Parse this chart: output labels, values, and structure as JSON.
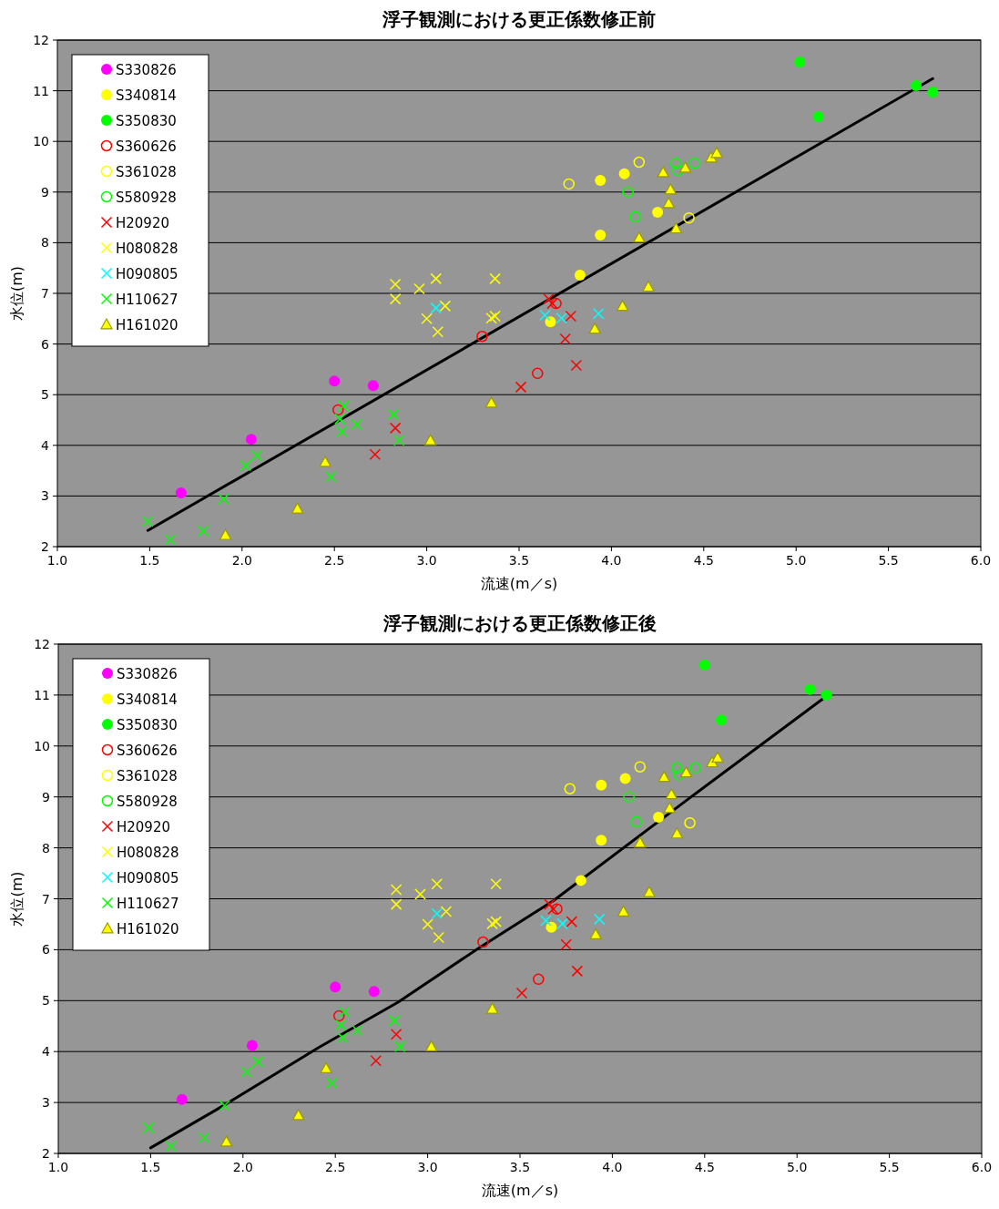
{
  "chart_data": [
    {
      "type": "scatter",
      "title": "浮子観測における更正係数修正前",
      "xlabel": "流速(m／s)",
      "ylabel": "水位(m)",
      "xlim": [
        1.0,
        6.0
      ],
      "xticks": [
        {
          "value": 1,
          "label": "1.0"
        },
        {
          "value": 1.5,
          "label": "1.5"
        },
        {
          "value": 2,
          "label": "2.0"
        },
        {
          "value": 2.5,
          "label": "2.5"
        },
        {
          "value": 3,
          "label": "3.0"
        },
        {
          "value": 3.5,
          "label": "3.5"
        },
        {
          "value": 4,
          "label": "4.0"
        },
        {
          "value": 4.5,
          "label": "4.5"
        },
        {
          "value": 5,
          "label": "5.0"
        },
        {
          "value": 5.5,
          "label": "5.5"
        },
        {
          "value": 6,
          "label": "6.0"
        }
      ],
      "ylim": [
        2,
        12
      ],
      "yticks": [
        2,
        3,
        4,
        5,
        6,
        7,
        8,
        9,
        10,
        11,
        12
      ],
      "grid": "y",
      "legend": "top left",
      "series": [
        {
          "name": "S330826",
          "color": "#ff00ff",
          "marker": "circle",
          "x": [
            1.67,
            2.05,
            2.5,
            2.71
          ],
          "values": [
            3.06,
            4.12,
            5.27,
            5.18
          ]
        },
        {
          "name": "S340814",
          "color": "#ffff00",
          "marker": "circle",
          "x": [
            4.07,
            3.94,
            4.25,
            3.94,
            3.83,
            3.67
          ],
          "values": [
            9.36,
            9.23,
            8.6,
            8.15,
            7.36,
            6.44
          ]
        },
        {
          "name": "S350830",
          "color": "#00ff00",
          "marker": "circle",
          "x": [
            5.02,
            5.12,
            5.65,
            5.74
          ],
          "values": [
            11.57,
            10.49,
            11.1,
            10.97
          ]
        },
        {
          "name": "S360626",
          "color": "#ff0000",
          "marker": "circle-open",
          "x": [
            3.3,
            3.6,
            2.52,
            3.7
          ],
          "values": [
            6.15,
            5.42,
            4.7,
            6.8
          ]
        },
        {
          "name": "S361028",
          "color": "#ffff00",
          "marker": "circle-open",
          "x": [
            3.77,
            4.15,
            4.42
          ],
          "values": [
            9.16,
            9.59,
            8.49
          ]
        },
        {
          "name": "S580928",
          "color": "#00ff00",
          "marker": "circle-open",
          "x": [
            4.09,
            4.13,
            4.35,
            4.36,
            4.45
          ],
          "values": [
            9.0,
            8.51,
            9.57,
            9.43,
            9.57
          ]
        },
        {
          "name": "H20920",
          "color": "#ff0000",
          "marker": "cross",
          "x": [
            3.66,
            3.68,
            3.78,
            3.75,
            3.81,
            3.51,
            2.83,
            2.72
          ],
          "values": [
            6.89,
            6.8,
            6.55,
            6.1,
            5.58,
            5.15,
            4.34,
            3.82
          ]
        },
        {
          "name": "H080828",
          "color": "#ffff00",
          "marker": "cross",
          "x": [
            2.83,
            2.83,
            2.96,
            3.05,
            3.37,
            3.1,
            3.0,
            3.06,
            3.35,
            3.37
          ],
          "values": [
            7.18,
            6.89,
            7.09,
            7.29,
            7.29,
            6.75,
            6.5,
            6.24,
            6.51,
            6.55
          ]
        },
        {
          "name": "H090805",
          "color": "#00ffff",
          "marker": "cross",
          "x": [
            3.05,
            3.64,
            3.73,
            3.93
          ],
          "values": [
            6.71,
            6.57,
            6.51,
            6.6
          ]
        },
        {
          "name": "H110627",
          "color": "#00ff00",
          "marker": "cross",
          "x": [
            1.49,
            1.61,
            1.79,
            1.9,
            2.02,
            2.08,
            2.48,
            2.53,
            2.55,
            2.54,
            2.62,
            2.82,
            2.85
          ],
          "values": [
            2.5,
            2.14,
            2.31,
            2.94,
            3.6,
            3.8,
            3.38,
            4.52,
            4.78,
            4.27,
            4.41,
            4.61,
            4.1
          ]
        },
        {
          "name": "H161020",
          "color": "#ffff00",
          "marker": "triangle",
          "x": [
            1.91,
            2.3,
            2.45,
            3.02,
            3.35,
            3.91,
            4.06,
            4.2,
            4.15,
            4.35,
            4.31,
            4.32,
            4.28,
            4.4,
            4.54,
            4.57
          ],
          "values": [
            2.23,
            2.75,
            3.67,
            4.1,
            4.84,
            6.3,
            6.75,
            7.13,
            8.1,
            8.28,
            8.78,
            9.05,
            9.39,
            9.48,
            9.68,
            9.77
          ]
        },
        {
          "type": "line",
          "color": "#000000",
          "marker": "none",
          "x": [
            1.49,
            5.74
          ],
          "values": [
            2.32,
            11.24
          ]
        }
      ]
    },
    {
      "type": "scatter",
      "title": "浮子観測における更正係数修正後",
      "xlabel": "流速(m／s)",
      "ylabel": "水位(m)",
      "xlim": [
        1.0,
        6.0
      ],
      "xticks": [
        {
          "value": 1,
          "label": "1.0"
        },
        {
          "value": 1.5,
          "label": "1.5"
        },
        {
          "value": 2,
          "label": "2.0"
        },
        {
          "value": 2.5,
          "label": "2.5"
        },
        {
          "value": 3,
          "label": "3.0"
        },
        {
          "value": 3.5,
          "label": "3.5"
        },
        {
          "value": 4,
          "label": "4.0"
        },
        {
          "value": 4.5,
          "label": "4.5"
        },
        {
          "value": 5,
          "label": "5.0"
        },
        {
          "value": 5.5,
          "label": "5.5"
        },
        {
          "value": 6,
          "label": "6.0"
        }
      ],
      "ylim": [
        2,
        12
      ],
      "yticks": [
        2,
        3,
        4,
        5,
        6,
        7,
        8,
        9,
        10,
        11,
        12
      ],
      "grid": "y",
      "legend": "top left",
      "series": [
        {
          "name": "S330826",
          "color": "#ff00ff",
          "marker": "circle",
          "x": [
            1.67,
            2.05,
            2.5,
            2.71
          ],
          "values": [
            3.06,
            4.12,
            5.27,
            5.18
          ]
        },
        {
          "name": "S340814",
          "color": "#ffff00",
          "marker": "circle",
          "x": [
            4.07,
            3.94,
            4.25,
            3.94,
            3.83,
            3.67
          ],
          "values": [
            9.36,
            9.23,
            8.6,
            8.15,
            7.36,
            6.44
          ]
        },
        {
          "name": "S350830",
          "color": "#00ff00",
          "marker": "circle",
          "x": [
            4.5,
            4.59,
            5.07,
            5.16
          ],
          "values": [
            11.59,
            10.51,
            11.11,
            11.0
          ]
        },
        {
          "name": "S360626",
          "color": "#ff0000",
          "marker": "circle-open",
          "x": [
            3.3,
            3.6,
            2.52,
            3.7
          ],
          "values": [
            6.15,
            5.42,
            4.7,
            6.8
          ]
        },
        {
          "name": "S361028",
          "color": "#ffff00",
          "marker": "circle-open",
          "x": [
            3.77,
            4.15,
            4.42
          ],
          "values": [
            9.16,
            9.59,
            8.49
          ]
        },
        {
          "name": "S580928",
          "color": "#00ff00",
          "marker": "circle-open",
          "x": [
            4.09,
            4.13,
            4.35,
            4.36,
            4.45
          ],
          "values": [
            9.0,
            8.51,
            9.57,
            9.43,
            9.57
          ]
        },
        {
          "name": "H20920",
          "color": "#ff0000",
          "marker": "cross",
          "x": [
            3.66,
            3.68,
            3.78,
            3.75,
            3.81,
            3.51,
            2.83,
            2.72
          ],
          "values": [
            6.89,
            6.8,
            6.55,
            6.1,
            5.58,
            5.15,
            4.34,
            3.82
          ]
        },
        {
          "name": "H080828",
          "color": "#ffff00",
          "marker": "cross",
          "x": [
            2.83,
            2.83,
            2.96,
            3.05,
            3.37,
            3.1,
            3.0,
            3.06,
            3.35,
            3.37
          ],
          "values": [
            7.18,
            6.89,
            7.09,
            7.29,
            7.29,
            6.75,
            6.5,
            6.24,
            6.51,
            6.55
          ]
        },
        {
          "name": "H090805",
          "color": "#00ffff",
          "marker": "cross",
          "x": [
            3.05,
            3.64,
            3.73,
            3.93
          ],
          "values": [
            6.71,
            6.57,
            6.51,
            6.6
          ]
        },
        {
          "name": "H110627",
          "color": "#00ff00",
          "marker": "cross",
          "x": [
            1.49,
            1.61,
            1.79,
            1.9,
            2.02,
            2.08,
            2.48,
            2.53,
            2.55,
            2.54,
            2.62,
            2.82,
            2.85
          ],
          "values": [
            2.5,
            2.14,
            2.31,
            2.94,
            3.6,
            3.8,
            3.38,
            4.52,
            4.78,
            4.27,
            4.41,
            4.61,
            4.1
          ]
        },
        {
          "name": "H161020",
          "color": "#ffff00",
          "marker": "triangle",
          "x": [
            1.91,
            2.3,
            2.45,
            3.02,
            3.35,
            3.91,
            4.06,
            4.2,
            4.15,
            4.35,
            4.31,
            4.32,
            4.28,
            4.4,
            4.54,
            4.57
          ],
          "values": [
            2.23,
            2.75,
            3.67,
            4.1,
            4.84,
            6.3,
            6.75,
            7.13,
            8.1,
            8.28,
            8.78,
            9.05,
            9.39,
            9.48,
            9.68,
            9.77
          ]
        },
        {
          "type": "line",
          "color": "#000000",
          "marker": "none",
          "x": [
            1.5,
            1.9,
            2.41,
            2.84,
            3.28,
            3.68,
            4.43,
            5.16
          ],
          "values": [
            2.11,
            2.95,
            4.08,
            4.97,
            6.04,
            6.96,
            9.01,
            10.98
          ]
        }
      ]
    }
  ]
}
